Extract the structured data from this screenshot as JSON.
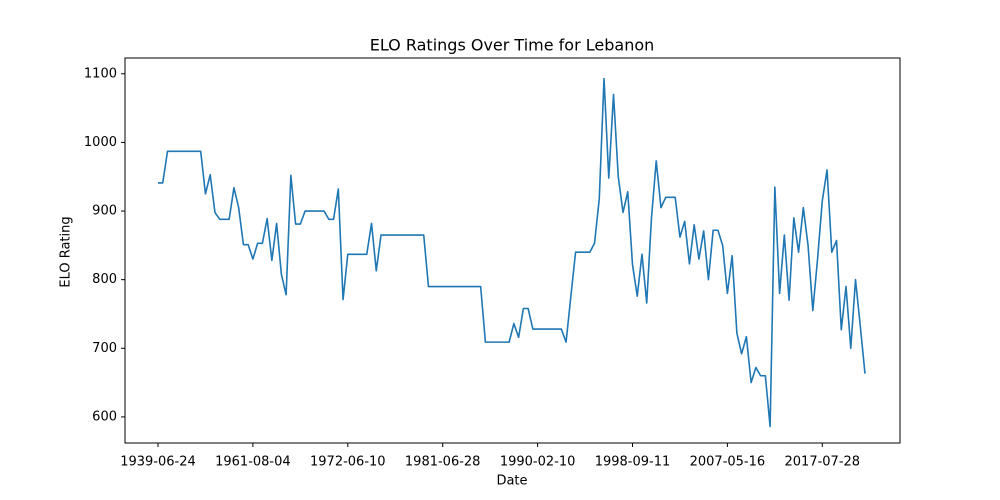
{
  "chart_data": {
    "type": "line",
    "title": "ELO Ratings Over Time for Lebanon",
    "x_label": "Date",
    "y_label": "ELO Rating",
    "categories": [
      "1939-06-24",
      null,
      null,
      null,
      null,
      null,
      null,
      null,
      null,
      null,
      null,
      null,
      null,
      null,
      null,
      null,
      null,
      null,
      null,
      null,
      "1961-08-04",
      null,
      null,
      null,
      null,
      null,
      null,
      null,
      null,
      null,
      null,
      null,
      null,
      null,
      null,
      null,
      null,
      null,
      null,
      null,
      "1972-06-10",
      null,
      null,
      null,
      null,
      null,
      null,
      null,
      null,
      null,
      null,
      null,
      null,
      null,
      null,
      null,
      null,
      null,
      null,
      null,
      "1981-06-28",
      null,
      null,
      null,
      null,
      null,
      null,
      null,
      null,
      null,
      null,
      null,
      null,
      null,
      null,
      null,
      null,
      null,
      null,
      null,
      "1990-02-10",
      null,
      null,
      null,
      null,
      null,
      null,
      null,
      null,
      null,
      null,
      null,
      null,
      null,
      null,
      null,
      null,
      null,
      null,
      null,
      "1998-09-11",
      null,
      null,
      null,
      null,
      null,
      null,
      null,
      null,
      null,
      null,
      null,
      null,
      null,
      null,
      null,
      null,
      null,
      null,
      null,
      "2007-05-16",
      null,
      null,
      null,
      null,
      null,
      null,
      null,
      null,
      null,
      null,
      null,
      null,
      null,
      null,
      null,
      null,
      null,
      null,
      null,
      "2017-07-28",
      null,
      null,
      null,
      null,
      null,
      null,
      null,
      null,
      null
    ],
    "values": [
      941,
      941,
      987,
      987,
      987,
      987,
      987,
      987,
      987,
      987,
      925,
      953,
      898,
      888,
      888,
      888,
      934,
      905,
      851,
      851,
      830,
      853,
      853,
      889,
      828,
      882,
      808,
      778,
      952,
      881,
      881,
      900,
      900,
      900,
      900,
      900,
      888,
      888,
      932,
      771,
      837,
      837,
      837,
      837,
      837,
      882,
      813,
      865,
      865,
      865,
      865,
      865,
      865,
      865,
      865,
      865,
      865,
      790,
      790,
      790,
      790,
      790,
      790,
      790,
      790,
      790,
      790,
      790,
      790,
      709,
      709,
      709,
      709,
      709,
      709,
      736,
      716,
      758,
      758,
      728,
      728,
      728,
      728,
      728,
      728,
      728,
      709,
      775,
      840,
      840,
      840,
      840,
      853,
      918,
      1093,
      948,
      1070,
      950,
      898,
      928,
      822,
      776,
      837,
      766,
      890,
      973,
      905,
      920,
      920,
      920,
      862,
      885,
      823,
      880,
      830,
      871,
      800,
      872,
      872,
      850,
      780,
      835,
      722,
      692,
      717,
      650,
      672,
      660,
      660,
      586,
      935,
      780,
      865,
      770,
      890,
      840,
      905,
      850,
      755,
      830,
      915,
      960,
      840,
      857,
      727,
      790,
      700,
      800,
      733,
      663
    ],
    "color": "#1f77b4",
    "ylim": [
      562,
      1123
    ],
    "yticks": [
      600,
      700,
      800,
      900,
      1000,
      1100
    ]
  }
}
